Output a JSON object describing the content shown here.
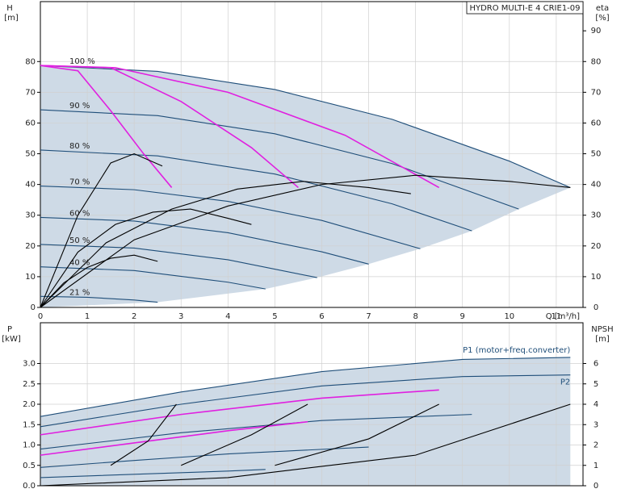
{
  "chart_data": [
    {
      "type": "line",
      "title": "HYDRO MULTI-E 4 CRIE1-09",
      "ylabel": "H",
      "yunit": "[m]",
      "y2label": "eta",
      "y2unit": "[%]",
      "xlabel": "Q [m³/h]",
      "xlim": [
        0,
        11.57
      ],
      "xticks": [
        0,
        1,
        2,
        3,
        4,
        5,
        6,
        7,
        8,
        9,
        10,
        11
      ],
      "ylim": [
        0,
        99.5
      ],
      "yticks": [
        0,
        10,
        20,
        30,
        40,
        50,
        60,
        70,
        80
      ],
      "y2lim": [
        0,
        99.5
      ],
      "y2ticks": [
        0,
        10,
        20,
        30,
        40,
        50,
        60,
        70,
        80,
        90
      ],
      "grid": true,
      "region_color": "#c9d6e3",
      "series": [
        {
          "name": "100 %",
          "color": "#1f4e79",
          "x": [
            0,
            2.5,
            5,
            7.5,
            10,
            11.3
          ],
          "values": [
            78.7,
            76.8,
            70.9,
            61.2,
            47.6,
            39.0
          ]
        },
        {
          "name": "90 %",
          "color": "#1f4e79",
          "x": [
            0,
            2.5,
            5,
            7.5,
            10.2
          ],
          "values": [
            64.3,
            62.4,
            56.5,
            46.8,
            32.0
          ]
        },
        {
          "name": "80 %",
          "color": "#1f4e79",
          "x": [
            0,
            2.5,
            5,
            7.5,
            9.2
          ],
          "values": [
            51.2,
            49.3,
            43.4,
            33.7,
            24.9
          ]
        },
        {
          "name": "70 %",
          "color": "#1f4e79",
          "x": [
            0,
            2,
            4,
            6,
            8.1
          ],
          "values": [
            39.5,
            38.3,
            34.5,
            28.3,
            19.1
          ]
        },
        {
          "name": "60 %",
          "color": "#1f4e79",
          "x": [
            0,
            2,
            4,
            6,
            7
          ],
          "values": [
            29.3,
            28.1,
            24.3,
            18.1,
            14.1
          ]
        },
        {
          "name": "50 %",
          "color": "#1f4e79",
          "x": [
            0,
            2,
            4,
            5.9
          ],
          "values": [
            20.5,
            19.3,
            15.5,
            9.7
          ]
        },
        {
          "name": "40 %",
          "color": "#1f4e79",
          "x": [
            0,
            2,
            4,
            4.8
          ],
          "values": [
            13.2,
            12.0,
            8.2,
            6.0
          ]
        },
        {
          "name": "21 %",
          "color": "#1f4e79",
          "x": [
            0,
            1,
            2,
            2.5
          ],
          "values": [
            3.6,
            3.3,
            2.4,
            1.7
          ]
        },
        {
          "color": "#e020e0",
          "x": [
            0,
            0.8,
            1.5,
            2.2,
            2.8
          ],
          "values": [
            78.7,
            77,
            64,
            50,
            39
          ]
        },
        {
          "color": "#e020e0",
          "x": [
            0,
            1.5,
            3,
            4.5,
            5.5
          ],
          "values": [
            78.7,
            78,
            67,
            52,
            39
          ]
        },
        {
          "color": "#e020e0",
          "x": [
            0,
            1.6,
            4,
            6.5,
            8.5
          ],
          "values": [
            78.7,
            78,
            70,
            56,
            39
          ]
        },
        {
          "color": "#000000",
          "axis": "y2",
          "x": [
            0,
            2,
            4,
            6,
            8,
            10,
            11.3
          ],
          "values": [
            0,
            22,
            33,
            40,
            43,
            41,
            39
          ]
        },
        {
          "color": "#000000",
          "axis": "y2",
          "x": [
            0,
            1.4,
            2.8,
            4.2,
            5.6,
            7,
            7.9
          ],
          "values": [
            0,
            21,
            32,
            38.5,
            41,
            39,
            37
          ]
        },
        {
          "color": "#000000",
          "axis": "y2",
          "x": [
            0,
            0.8,
            1.6,
            2.4,
            3.2,
            4,
            4.5
          ],
          "values": [
            0,
            18,
            27,
            31,
            32,
            29,
            27
          ]
        },
        {
          "color": "#000000",
          "axis": "y2",
          "x": [
            0,
            0.5,
            1,
            1.5,
            2,
            2.5
          ],
          "values": [
            0,
            8,
            13,
            16,
            17,
            15
          ]
        },
        {
          "color": "#000000",
          "axis": "y2",
          "x": [
            0,
            0.8,
            1.5,
            2,
            2.6
          ],
          "values": [
            0,
            30,
            47,
            50,
            46
          ]
        }
      ]
    },
    {
      "type": "line",
      "ylabel": "P",
      "yunit": "[kW]",
      "y2label": "NPSH",
      "y2unit": "[m]",
      "xlim": [
        0,
        11.57
      ],
      "xticks": [
        0,
        1,
        2,
        3,
        4,
        5,
        6,
        7,
        8,
        9,
        10,
        11
      ],
      "ylim": [
        0,
        4.0
      ],
      "yticks": [
        {
          "value": 0,
          "label": "0.0"
        },
        0.5,
        {
          "value": 1,
          "label": "1.0"
        },
        1.5,
        {
          "value": 2,
          "label": "2.0"
        },
        2.5,
        {
          "value": 3,
          "label": "3.0"
        }
      ],
      "y2lim": [
        0,
        8
      ],
      "y2ticks": [
        0,
        1,
        2,
        3,
        4,
        5,
        6
      ],
      "grid": true,
      "region_color": "#c9d6e3",
      "series": [
        {
          "name": "P1 (motor+freq.converter)",
          "color": "#1f4e79",
          "x": [
            0,
            3,
            6,
            9,
            11.3
          ],
          "values": [
            1.7,
            2.3,
            2.8,
            3.1,
            3.15
          ]
        },
        {
          "name": "P2",
          "color": "#1f4e79",
          "x": [
            0,
            3,
            6,
            9,
            11.3
          ],
          "values": [
            1.45,
            2.0,
            2.45,
            2.68,
            2.72
          ]
        },
        {
          "color": "#e020e0",
          "x": [
            0,
            3,
            6,
            8.5
          ],
          "values": [
            1.25,
            1.75,
            2.15,
            2.35
          ]
        },
        {
          "color": "#1f4e79",
          "x": [
            0,
            3,
            6,
            9.2
          ],
          "values": [
            0.9,
            1.3,
            1.6,
            1.75
          ]
        },
        {
          "color": "#e020e0",
          "x": [
            0,
            2,
            4,
            5.7
          ],
          "values": [
            0.75,
            1.05,
            1.35,
            1.57
          ]
        },
        {
          "color": "#1f4e79",
          "x": [
            0,
            2,
            4,
            7
          ],
          "values": [
            0.45,
            0.62,
            0.78,
            0.95
          ]
        },
        {
          "color": "#1f4e79",
          "x": [
            0,
            2,
            4,
            4.8
          ],
          "values": [
            0.2,
            0.28,
            0.36,
            0.4
          ]
        },
        {
          "color": "#000000",
          "axis": "y2",
          "x": [
            0,
            4,
            8,
            11.3
          ],
          "values": [
            0,
            0.4,
            1.5,
            4.0
          ]
        },
        {
          "color": "#000000",
          "axis": "y2",
          "x": [
            1.5,
            2.3,
            2.9
          ],
          "values": [
            1.0,
            2.2,
            4.0
          ]
        },
        {
          "color": "#000000",
          "axis": "y2",
          "x": [
            3,
            4.5,
            5.7
          ],
          "values": [
            1.0,
            2.5,
            4.0
          ]
        },
        {
          "color": "#000000",
          "axis": "y2",
          "x": [
            5,
            7,
            8.5
          ],
          "values": [
            1.0,
            2.3,
            4.0
          ]
        }
      ]
    }
  ]
}
